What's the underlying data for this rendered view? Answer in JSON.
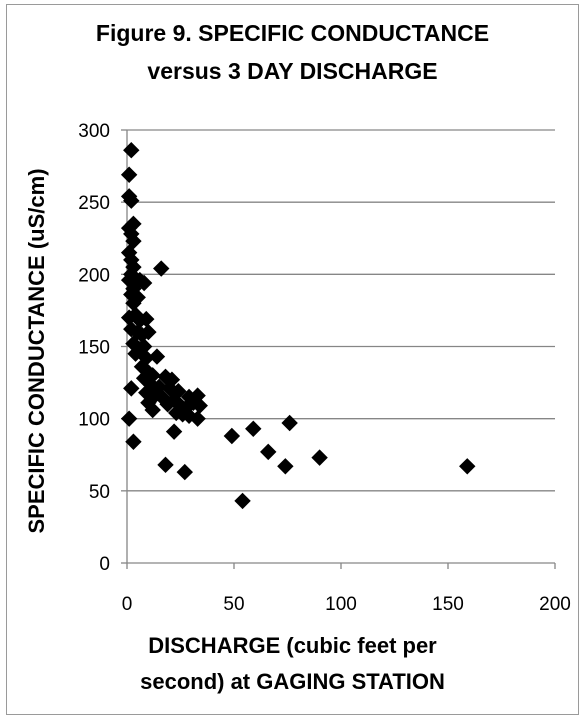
{
  "chart_data": {
    "type": "scatter",
    "title_line1": "Figure 9.  SPECIFIC CONDUCTANCE",
    "title_line2": "versus 3 DAY DISCHARGE",
    "xlabel_line1": "DISCHARGE (cubic feet per",
    "xlabel_line2": "second) at GAGING STATION",
    "ylabel": "SPECIFIC CONDUCTANCE (uS/cm)",
    "xlim": [
      0,
      200
    ],
    "ylim": [
      0,
      300
    ],
    "x_ticks": [
      0,
      50,
      100,
      150,
      200
    ],
    "y_ticks": [
      0,
      50,
      100,
      150,
      200,
      250,
      300
    ],
    "grid": "horizontal",
    "marker": "diamond",
    "marker_color": "#000000",
    "points": [
      {
        "x": 2,
        "y": 286
      },
      {
        "x": 1,
        "y": 269
      },
      {
        "x": 1,
        "y": 254
      },
      {
        "x": 2,
        "y": 251
      },
      {
        "x": 3,
        "y": 235
      },
      {
        "x": 1,
        "y": 232
      },
      {
        "x": 2,
        "y": 228
      },
      {
        "x": 3,
        "y": 223
      },
      {
        "x": 1,
        "y": 215
      },
      {
        "x": 2,
        "y": 210
      },
      {
        "x": 3,
        "y": 205
      },
      {
        "x": 2,
        "y": 200
      },
      {
        "x": 1,
        "y": 196
      },
      {
        "x": 4,
        "y": 193
      },
      {
        "x": 3,
        "y": 190
      },
      {
        "x": 2,
        "y": 186
      },
      {
        "x": 5,
        "y": 184
      },
      {
        "x": 3,
        "y": 180
      },
      {
        "x": 6,
        "y": 196
      },
      {
        "x": 8,
        "y": 194
      },
      {
        "x": 16,
        "y": 204
      },
      {
        "x": 1,
        "y": 170
      },
      {
        "x": 4,
        "y": 172
      },
      {
        "x": 6,
        "y": 168
      },
      {
        "x": 9,
        "y": 169
      },
      {
        "x": 2,
        "y": 162
      },
      {
        "x": 5,
        "y": 160
      },
      {
        "x": 7,
        "y": 158
      },
      {
        "x": 10,
        "y": 160
      },
      {
        "x": 3,
        "y": 152
      },
      {
        "x": 6,
        "y": 148
      },
      {
        "x": 8,
        "y": 150
      },
      {
        "x": 4,
        "y": 145
      },
      {
        "x": 9,
        "y": 142
      },
      {
        "x": 14,
        "y": 143
      },
      {
        "x": 7,
        "y": 136
      },
      {
        "x": 10,
        "y": 132
      },
      {
        "x": 12,
        "y": 130
      },
      {
        "x": 8,
        "y": 128
      },
      {
        "x": 18,
        "y": 129
      },
      {
        "x": 21,
        "y": 127
      },
      {
        "x": 11,
        "y": 124
      },
      {
        "x": 15,
        "y": 122
      },
      {
        "x": 20,
        "y": 121
      },
      {
        "x": 24,
        "y": 119
      },
      {
        "x": 2,
        "y": 121
      },
      {
        "x": 9,
        "y": 118
      },
      {
        "x": 13,
        "y": 116
      },
      {
        "x": 17,
        "y": 114
      },
      {
        "x": 22,
        "y": 113
      },
      {
        "x": 29,
        "y": 115
      },
      {
        "x": 33,
        "y": 116
      },
      {
        "x": 10,
        "y": 111
      },
      {
        "x": 19,
        "y": 110
      },
      {
        "x": 25,
        "y": 109
      },
      {
        "x": 28,
        "y": 108
      },
      {
        "x": 31,
        "y": 111
      },
      {
        "x": 34,
        "y": 109
      },
      {
        "x": 12,
        "y": 106
      },
      {
        "x": 23,
        "y": 104
      },
      {
        "x": 26,
        "y": 103
      },
      {
        "x": 29,
        "y": 102
      },
      {
        "x": 33,
        "y": 100
      },
      {
        "x": 1,
        "y": 100
      },
      {
        "x": 22,
        "y": 91
      },
      {
        "x": 3,
        "y": 84
      },
      {
        "x": 49,
        "y": 88
      },
      {
        "x": 59,
        "y": 93
      },
      {
        "x": 76,
        "y": 97
      },
      {
        "x": 66,
        "y": 77
      },
      {
        "x": 18,
        "y": 68
      },
      {
        "x": 27,
        "y": 63
      },
      {
        "x": 74,
        "y": 67
      },
      {
        "x": 90,
        "y": 73
      },
      {
        "x": 159,
        "y": 67
      },
      {
        "x": 54,
        "y": 43
      }
    ]
  }
}
